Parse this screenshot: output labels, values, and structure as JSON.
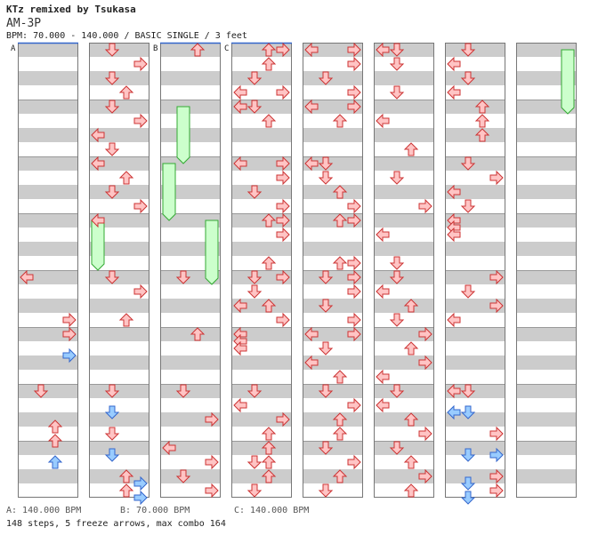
{
  "header": {
    "title": "KTz remixed by Tsukasa",
    "song": "AM-3P",
    "bpm_line": "BPM: 70.000 - 140.000 / BASIC SINGLE / 3 feet"
  },
  "bpm_legend": [
    {
      "label": "A: 140.000 BPM"
    },
    {
      "label": "B: 70.000 BPM"
    },
    {
      "label": "C: 140.000 BPM"
    }
  ],
  "stats": "148 steps, 5 freeze arrows, max combo 164",
  "colors": {
    "stripe_dark": "#cccccc",
    "stripe_light": "#ffffff",
    "border": "#777777",
    "arrow_normal_fill": "#ffc4c4",
    "arrow_normal_stroke": "#cc3333",
    "arrow_alt_fill": "#99ccff",
    "arrow_alt_stroke": "#3366cc",
    "freeze_fill": "#ccffcc",
    "freeze_stroke": "#33aa33",
    "marker_line": "#3366cc"
  },
  "chart_data": {
    "type": "step-chart",
    "lanes": [
      "left",
      "down",
      "up",
      "right"
    ],
    "columns": 8,
    "measures_per_column": 8,
    "units_per_measure": 8,
    "bpm_markers": [
      {
        "label": "A",
        "column": 0,
        "unit": 0
      },
      {
        "label": "B",
        "column": 2,
        "unit": 0
      },
      {
        "label": "C",
        "column": 3,
        "unit": 0
      }
    ],
    "freezes": [
      {
        "column": 1,
        "lane": "left",
        "start": 25,
        "end": 32
      },
      {
        "column": 2,
        "lane": "down",
        "start": 9,
        "end": 17
      },
      {
        "column": 2,
        "lane": "left",
        "start": 17,
        "end": 25
      },
      {
        "column": 2,
        "lane": "right",
        "start": 25,
        "end": 34
      },
      {
        "column": 7,
        "lane": "right",
        "start": 1,
        "end": 10
      }
    ],
    "notes": [
      [
        {
          "unit": 33,
          "lane": "left",
          "color": "normal"
        },
        {
          "unit": 39,
          "lane": "right",
          "color": "normal"
        },
        {
          "unit": 41,
          "lane": "right",
          "color": "normal"
        },
        {
          "unit": 44,
          "lane": "right",
          "color": "alt"
        },
        {
          "unit": 49,
          "lane": "down",
          "color": "normal"
        },
        {
          "unit": 54,
          "lane": "up",
          "color": "normal"
        },
        {
          "unit": 56,
          "lane": "up",
          "color": "normal"
        },
        {
          "unit": 59,
          "lane": "up",
          "color": "alt"
        }
      ],
      [
        {
          "unit": 1,
          "lane": "down",
          "color": "normal"
        },
        {
          "unit": 3,
          "lane": "right",
          "color": "normal"
        },
        {
          "unit": 5,
          "lane": "down",
          "color": "normal"
        },
        {
          "unit": 7,
          "lane": "up",
          "color": "normal"
        },
        {
          "unit": 9,
          "lane": "down",
          "color": "normal"
        },
        {
          "unit": 11,
          "lane": "right",
          "color": "normal"
        },
        {
          "unit": 13,
          "lane": "left",
          "color": "normal"
        },
        {
          "unit": 15,
          "lane": "down",
          "color": "normal"
        },
        {
          "unit": 17,
          "lane": "left",
          "color": "normal"
        },
        {
          "unit": 19,
          "lane": "up",
          "color": "normal"
        },
        {
          "unit": 21,
          "lane": "down",
          "color": "normal"
        },
        {
          "unit": 23,
          "lane": "right",
          "color": "normal"
        },
        {
          "unit": 25,
          "lane": "left",
          "color": "normal"
        },
        {
          "unit": 33,
          "lane": "down",
          "color": "normal"
        },
        {
          "unit": 35,
          "lane": "right",
          "color": "normal"
        },
        {
          "unit": 39,
          "lane": "up",
          "color": "normal"
        },
        {
          "unit": 49,
          "lane": "down",
          "color": "normal"
        },
        {
          "unit": 52,
          "lane": "down",
          "color": "alt"
        },
        {
          "unit": 55,
          "lane": "down",
          "color": "normal"
        },
        {
          "unit": 58,
          "lane": "down",
          "color": "alt"
        },
        {
          "unit": 61,
          "lane": "up",
          "color": "normal"
        },
        {
          "unit": 62,
          "lane": "right",
          "color": "alt"
        },
        {
          "unit": 63,
          "lane": "up",
          "color": "normal"
        },
        {
          "unit": 64,
          "lane": "right",
          "color": "alt"
        }
      ],
      [
        {
          "unit": 1,
          "lane": "up",
          "color": "normal"
        },
        {
          "unit": 33,
          "lane": "down",
          "color": "normal"
        },
        {
          "unit": 41,
          "lane": "up",
          "color": "normal"
        },
        {
          "unit": 49,
          "lane": "down",
          "color": "normal"
        },
        {
          "unit": 53,
          "lane": "right",
          "color": "normal"
        },
        {
          "unit": 57,
          "lane": "left",
          "color": "normal"
        },
        {
          "unit": 59,
          "lane": "right",
          "color": "normal"
        },
        {
          "unit": 61,
          "lane": "down",
          "color": "normal"
        },
        {
          "unit": 63,
          "lane": "right",
          "color": "normal"
        }
      ],
      [
        {
          "unit": 1,
          "lane": "up",
          "color": "normal"
        },
        {
          "unit": 1,
          "lane": "right",
          "color": "normal"
        },
        {
          "unit": 3,
          "lane": "up",
          "color": "normal"
        },
        {
          "unit": 5,
          "lane": "down",
          "color": "normal"
        },
        {
          "unit": 7,
          "lane": "left",
          "color": "normal"
        },
        {
          "unit": 7,
          "lane": "right",
          "color": "normal"
        },
        {
          "unit": 9,
          "lane": "left",
          "color": "normal"
        },
        {
          "unit": 9,
          "lane": "down",
          "color": "normal"
        },
        {
          "unit": 11,
          "lane": "up",
          "color": "normal"
        },
        {
          "unit": 17,
          "lane": "left",
          "color": "normal"
        },
        {
          "unit": 17,
          "lane": "right",
          "color": "normal"
        },
        {
          "unit": 19,
          "lane": "right",
          "color": "normal"
        },
        {
          "unit": 21,
          "lane": "down",
          "color": "normal"
        },
        {
          "unit": 23,
          "lane": "right",
          "color": "normal"
        },
        {
          "unit": 25,
          "lane": "up",
          "color": "normal"
        },
        {
          "unit": 25,
          "lane": "right",
          "color": "normal"
        },
        {
          "unit": 27,
          "lane": "right",
          "color": "normal"
        },
        {
          "unit": 31,
          "lane": "up",
          "color": "normal"
        },
        {
          "unit": 33,
          "lane": "down",
          "color": "normal"
        },
        {
          "unit": 33,
          "lane": "right",
          "color": "normal"
        },
        {
          "unit": 35,
          "lane": "down",
          "color": "normal"
        },
        {
          "unit": 37,
          "lane": "left",
          "color": "normal"
        },
        {
          "unit": 37,
          "lane": "up",
          "color": "normal"
        },
        {
          "unit": 39,
          "lane": "right",
          "color": "normal"
        },
        {
          "unit": 41,
          "lane": "left",
          "color": "normal"
        },
        {
          "unit": 42,
          "lane": "left",
          "color": "normal"
        },
        {
          "unit": 43,
          "lane": "left",
          "color": "normal"
        },
        {
          "unit": 49,
          "lane": "down",
          "color": "normal"
        },
        {
          "unit": 51,
          "lane": "left",
          "color": "normal"
        },
        {
          "unit": 53,
          "lane": "right",
          "color": "normal"
        },
        {
          "unit": 55,
          "lane": "up",
          "color": "normal"
        },
        {
          "unit": 57,
          "lane": "up",
          "color": "normal"
        },
        {
          "unit": 59,
          "lane": "down",
          "color": "normal"
        },
        {
          "unit": 59,
          "lane": "up",
          "color": "normal"
        },
        {
          "unit": 61,
          "lane": "up",
          "color": "normal"
        },
        {
          "unit": 63,
          "lane": "down",
          "color": "normal"
        }
      ],
      [
        {
          "unit": 1,
          "lane": "left",
          "color": "normal"
        },
        {
          "unit": 1,
          "lane": "right",
          "color": "normal"
        },
        {
          "unit": 3,
          "lane": "right",
          "color": "normal"
        },
        {
          "unit": 5,
          "lane": "down",
          "color": "normal"
        },
        {
          "unit": 7,
          "lane": "right",
          "color": "normal"
        },
        {
          "unit": 9,
          "lane": "left",
          "color": "normal"
        },
        {
          "unit": 9,
          "lane": "right",
          "color": "normal"
        },
        {
          "unit": 11,
          "lane": "up",
          "color": "normal"
        },
        {
          "unit": 17,
          "lane": "left",
          "color": "normal"
        },
        {
          "unit": 17,
          "lane": "down",
          "color": "normal"
        },
        {
          "unit": 19,
          "lane": "down",
          "color": "normal"
        },
        {
          "unit": 21,
          "lane": "up",
          "color": "normal"
        },
        {
          "unit": 23,
          "lane": "right",
          "color": "normal"
        },
        {
          "unit": 25,
          "lane": "up",
          "color": "normal"
        },
        {
          "unit": 25,
          "lane": "right",
          "color": "normal"
        },
        {
          "unit": 31,
          "lane": "up",
          "color": "normal"
        },
        {
          "unit": 31,
          "lane": "right",
          "color": "normal"
        },
        {
          "unit": 33,
          "lane": "down",
          "color": "normal"
        },
        {
          "unit": 33,
          "lane": "right",
          "color": "normal"
        },
        {
          "unit": 35,
          "lane": "right",
          "color": "normal"
        },
        {
          "unit": 37,
          "lane": "down",
          "color": "normal"
        },
        {
          "unit": 39,
          "lane": "right",
          "color": "normal"
        },
        {
          "unit": 41,
          "lane": "left",
          "color": "normal"
        },
        {
          "unit": 41,
          "lane": "right",
          "color": "normal"
        },
        {
          "unit": 43,
          "lane": "down",
          "color": "normal"
        },
        {
          "unit": 45,
          "lane": "left",
          "color": "normal"
        },
        {
          "unit": 47,
          "lane": "up",
          "color": "normal"
        },
        {
          "unit": 49,
          "lane": "down",
          "color": "normal"
        },
        {
          "unit": 51,
          "lane": "right",
          "color": "normal"
        },
        {
          "unit": 53,
          "lane": "up",
          "color": "normal"
        },
        {
          "unit": 55,
          "lane": "up",
          "color": "normal"
        },
        {
          "unit": 57,
          "lane": "down",
          "color": "normal"
        },
        {
          "unit": 59,
          "lane": "right",
          "color": "normal"
        },
        {
          "unit": 61,
          "lane": "up",
          "color": "normal"
        },
        {
          "unit": 63,
          "lane": "down",
          "color": "normal"
        }
      ],
      [
        {
          "unit": 1,
          "lane": "left",
          "color": "normal"
        },
        {
          "unit": 1,
          "lane": "down",
          "color": "normal"
        },
        {
          "unit": 3,
          "lane": "down",
          "color": "normal"
        },
        {
          "unit": 7,
          "lane": "down",
          "color": "normal"
        },
        {
          "unit": 11,
          "lane": "left",
          "color": "normal"
        },
        {
          "unit": 15,
          "lane": "up",
          "color": "normal"
        },
        {
          "unit": 19,
          "lane": "down",
          "color": "normal"
        },
        {
          "unit": 23,
          "lane": "right",
          "color": "normal"
        },
        {
          "unit": 27,
          "lane": "left",
          "color": "normal"
        },
        {
          "unit": 31,
          "lane": "down",
          "color": "normal"
        },
        {
          "unit": 33,
          "lane": "down",
          "color": "normal"
        },
        {
          "unit": 35,
          "lane": "left",
          "color": "normal"
        },
        {
          "unit": 37,
          "lane": "up",
          "color": "normal"
        },
        {
          "unit": 39,
          "lane": "down",
          "color": "normal"
        },
        {
          "unit": 41,
          "lane": "right",
          "color": "normal"
        },
        {
          "unit": 43,
          "lane": "up",
          "color": "normal"
        },
        {
          "unit": 45,
          "lane": "right",
          "color": "normal"
        },
        {
          "unit": 47,
          "lane": "left",
          "color": "normal"
        },
        {
          "unit": 49,
          "lane": "down",
          "color": "normal"
        },
        {
          "unit": 51,
          "lane": "left",
          "color": "normal"
        },
        {
          "unit": 53,
          "lane": "up",
          "color": "normal"
        },
        {
          "unit": 55,
          "lane": "right",
          "color": "normal"
        },
        {
          "unit": 57,
          "lane": "down",
          "color": "normal"
        },
        {
          "unit": 59,
          "lane": "up",
          "color": "normal"
        },
        {
          "unit": 61,
          "lane": "right",
          "color": "normal"
        },
        {
          "unit": 63,
          "lane": "up",
          "color": "normal"
        }
      ],
      [
        {
          "unit": 1,
          "lane": "down",
          "color": "normal"
        },
        {
          "unit": 3,
          "lane": "left",
          "color": "normal"
        },
        {
          "unit": 5,
          "lane": "down",
          "color": "normal"
        },
        {
          "unit": 7,
          "lane": "left",
          "color": "normal"
        },
        {
          "unit": 9,
          "lane": "up",
          "color": "normal"
        },
        {
          "unit": 11,
          "lane": "up",
          "color": "normal"
        },
        {
          "unit": 13,
          "lane": "up",
          "color": "normal"
        },
        {
          "unit": 17,
          "lane": "down",
          "color": "normal"
        },
        {
          "unit": 19,
          "lane": "right",
          "color": "normal"
        },
        {
          "unit": 21,
          "lane": "left",
          "color": "normal"
        },
        {
          "unit": 23,
          "lane": "down",
          "color": "normal"
        },
        {
          "unit": 25,
          "lane": "left",
          "color": "normal"
        },
        {
          "unit": 26,
          "lane": "left",
          "color": "normal"
        },
        {
          "unit": 27,
          "lane": "left",
          "color": "normal"
        },
        {
          "unit": 33,
          "lane": "right",
          "color": "normal"
        },
        {
          "unit": 35,
          "lane": "down",
          "color": "normal"
        },
        {
          "unit": 37,
          "lane": "right",
          "color": "normal"
        },
        {
          "unit": 39,
          "lane": "left",
          "color": "normal"
        },
        {
          "unit": 49,
          "lane": "left",
          "color": "normal"
        },
        {
          "unit": 49,
          "lane": "down",
          "color": "normal"
        },
        {
          "unit": 52,
          "lane": "left",
          "color": "alt"
        },
        {
          "unit": 52,
          "lane": "down",
          "color": "alt"
        },
        {
          "unit": 55,
          "lane": "right",
          "color": "normal"
        },
        {
          "unit": 58,
          "lane": "down",
          "color": "alt"
        },
        {
          "unit": 58,
          "lane": "right",
          "color": "alt"
        },
        {
          "unit": 61,
          "lane": "right",
          "color": "normal"
        },
        {
          "unit": 62,
          "lane": "down",
          "color": "alt"
        },
        {
          "unit": 63,
          "lane": "right",
          "color": "normal"
        },
        {
          "unit": 64,
          "lane": "down",
          "color": "alt"
        }
      ],
      []
    ]
  }
}
